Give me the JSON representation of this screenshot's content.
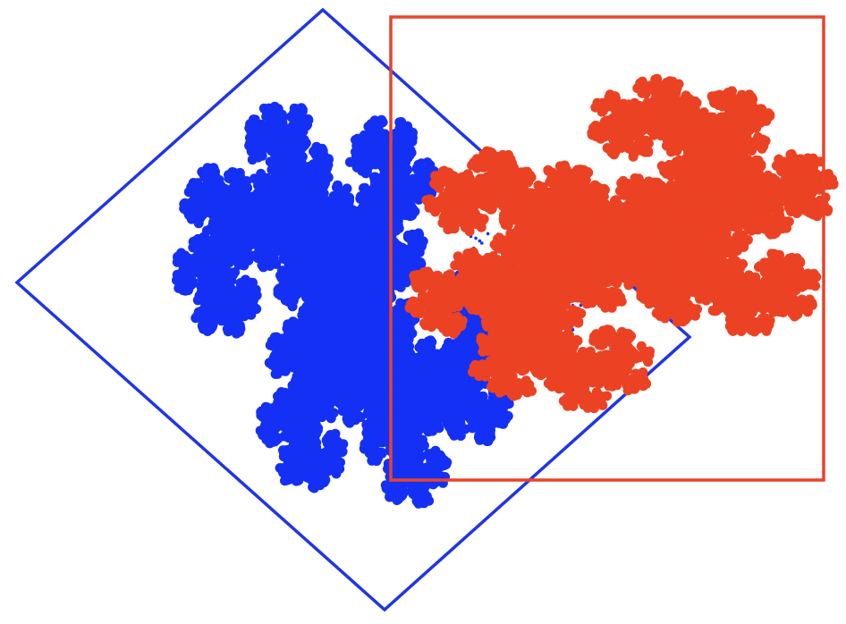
{
  "figure": {
    "background": "#ffffff",
    "shapes": [
      {
        "id": "blue",
        "kind": "rotated-square",
        "color": "#1f35e6",
        "fill_color": "#1530f5",
        "fractal": "twindragon"
      },
      {
        "id": "red",
        "kind": "axis-aligned-square",
        "color": "#e8442a",
        "fill_color": "#ec4224",
        "fractal": "twindragon"
      }
    ]
  }
}
